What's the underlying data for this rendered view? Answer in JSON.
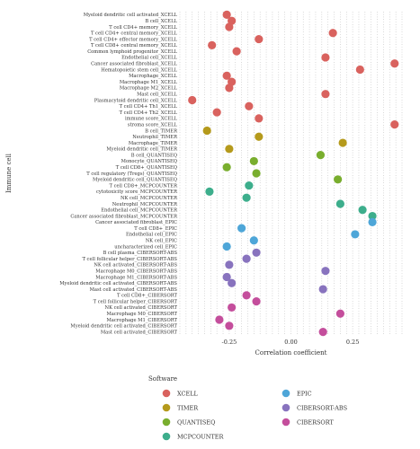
{
  "chart_data": {
    "type": "scatter",
    "xlabel": "Correlation coefficient",
    "ylabel": "Immune cell",
    "xlim": [
      -0.45,
      0.45
    ],
    "x_ticks": [
      -0.25,
      0.0,
      0.25
    ],
    "x_tick_labels": [
      "-0.25",
      "0.00",
      "0.25"
    ],
    "grid": "dotted",
    "legend_title": "Software",
    "legend_position": "bottom",
    "series_colors": {
      "XCELL": "#D9625E",
      "TIMER": "#B59A1C",
      "QUANTISEQ": "#79AE2E",
      "MCPCOUNTER": "#3DAE8C",
      "EPIC": "#4EA6D8",
      "CIBERSORT-ABS": "#8873BE",
      "CIBERSORT": "#C44E9C"
    },
    "legend": [
      "XCELL",
      "TIMER",
      "QUANTISEQ",
      "MCPCOUNTER",
      "EPIC",
      "CIBERSORT-ABS",
      "CIBERSORT"
    ],
    "points": [
      {
        "cell": "Myeloid dendritic cell activated_XCELL",
        "software": "XCELL",
        "x": -0.26
      },
      {
        "cell": "B cell_XCELL",
        "software": "XCELL",
        "x": -0.24
      },
      {
        "cell": "T cell CD4+ memory_XCELL",
        "software": "XCELL",
        "x": -0.25
      },
      {
        "cell": "T cell CD4+ central memory_XCELL",
        "software": "XCELL",
        "x": 0.17
      },
      {
        "cell": "T cell CD4+ effector memory_XCELL",
        "software": "XCELL",
        "x": -0.13
      },
      {
        "cell": "T cell CD8+ central memory_XCELL",
        "software": "XCELL",
        "x": -0.32
      },
      {
        "cell": "Common lymphoid progenitor_XCELL",
        "software": "XCELL",
        "x": -0.22
      },
      {
        "cell": "Endothelial cell_XCELL",
        "software": "XCELL",
        "x": 0.14
      },
      {
        "cell": "Cancer associated fibroblast_XCELL",
        "software": "XCELL",
        "x": 0.42
      },
      {
        "cell": "Hematopoietic stem cell_XCELL",
        "software": "XCELL",
        "x": 0.28
      },
      {
        "cell": "Macrophage_XCELL",
        "software": "XCELL",
        "x": -0.26
      },
      {
        "cell": "Macrophage M1_XCELL",
        "software": "XCELL",
        "x": -0.24
      },
      {
        "cell": "Macrophage M2_XCELL",
        "software": "XCELL",
        "x": -0.25
      },
      {
        "cell": "Mast cell_XCELL",
        "software": "XCELL",
        "x": 0.14
      },
      {
        "cell": "Plasmacytoid dendritic cell_XCELL",
        "software": "XCELL",
        "x": -0.4
      },
      {
        "cell": "T cell CD4+ Th1_XCELL",
        "software": "XCELL",
        "x": -0.17
      },
      {
        "cell": "T cell CD4+ Th2_XCELL",
        "software": "XCELL",
        "x": -0.3
      },
      {
        "cell": "immune score_XCELL",
        "software": "XCELL",
        "x": -0.13
      },
      {
        "cell": "stroma score_XCELL",
        "software": "XCELL",
        "x": 0.42
      },
      {
        "cell": "B cell_TIMER",
        "software": "TIMER",
        "x": -0.34
      },
      {
        "cell": "Neutrophil_TIMER",
        "software": "TIMER",
        "x": -0.13
      },
      {
        "cell": "Macrophage_TIMER",
        "software": "TIMER",
        "x": 0.21
      },
      {
        "cell": "Myeloid dendritic cell_TIMER",
        "software": "TIMER",
        "x": -0.25
      },
      {
        "cell": "B cell_QUANTISEQ",
        "software": "QUANTISEQ",
        "x": 0.12
      },
      {
        "cell": "Monocyte_QUANTISEQ",
        "software": "QUANTISEQ",
        "x": -0.15
      },
      {
        "cell": "T cell CD8+_QUANTISEQ",
        "software": "QUANTISEQ",
        "x": -0.26
      },
      {
        "cell": "T cell regulatory (Tregs)_QUANTISEQ",
        "software": "QUANTISEQ",
        "x": -0.14
      },
      {
        "cell": "Myeloid dendritic cell_QUANTISEQ",
        "software": "QUANTISEQ",
        "x": 0.19
      },
      {
        "cell": "T cell CD8+_MCPCOUNTER",
        "software": "MCPCOUNTER",
        "x": -0.17
      },
      {
        "cell": "cytotoxicity score_MCPCOUNTER",
        "software": "MCPCOUNTER",
        "x": -0.33
      },
      {
        "cell": "NK cell_MCPCOUNTER",
        "software": "MCPCOUNTER",
        "x": -0.18
      },
      {
        "cell": "Neutrophil_MCPCOUNTER",
        "software": "MCPCOUNTER",
        "x": 0.2
      },
      {
        "cell": "Endothelial cell_MCPCOUNTER",
        "software": "MCPCOUNTER",
        "x": 0.29
      },
      {
        "cell": "Cancer associated fibroblast_MCPCOUNTER",
        "software": "MCPCOUNTER",
        "x": 0.33
      },
      {
        "cell": "Cancer associated fibroblast_EPIC",
        "software": "EPIC",
        "x": 0.33
      },
      {
        "cell": "T cell CD8+_EPIC",
        "software": "EPIC",
        "x": -0.2
      },
      {
        "cell": "Endothelial cell_EPIC",
        "software": "EPIC",
        "x": 0.26
      },
      {
        "cell": "NK cell_EPIC",
        "software": "EPIC",
        "x": -0.15
      },
      {
        "cell": "uncharacterized cell_EPIC",
        "software": "EPIC",
        "x": -0.26
      },
      {
        "cell": "B cell plasma_CIBERSORT-ABS",
        "software": "CIBERSORT-ABS",
        "x": -0.14
      },
      {
        "cell": "T cell follicular helper_CIBERSORT-ABS",
        "software": "CIBERSORT-ABS",
        "x": -0.18
      },
      {
        "cell": "NK cell activated_CIBERSORT-ABS",
        "software": "CIBERSORT-ABS",
        "x": -0.25
      },
      {
        "cell": "Macrophage M0_CIBERSORT-ABS",
        "software": "CIBERSORT-ABS",
        "x": 0.14
      },
      {
        "cell": "Macrophage M1_CIBERSORT-ABS",
        "software": "CIBERSORT-ABS",
        "x": -0.26
      },
      {
        "cell": "Myeloid dendritic cell activated_CIBERSORT-ABS",
        "software": "CIBERSORT-ABS",
        "x": -0.24
      },
      {
        "cell": "Mast cell activated_CIBERSORT-ABS",
        "software": "CIBERSORT-ABS",
        "x": 0.13
      },
      {
        "cell": "T cell CD8+_CIBERSORT",
        "software": "CIBERSORT",
        "x": -0.18
      },
      {
        "cell": "T cell follicular helper_CIBERSORT",
        "software": "CIBERSORT",
        "x": -0.14
      },
      {
        "cell": "NK cell activated_CIBERSORT",
        "software": "CIBERSORT",
        "x": -0.24
      },
      {
        "cell": "Macrophage M0_CIBERSORT",
        "software": "CIBERSORT",
        "x": 0.2
      },
      {
        "cell": "Macrophage M1_CIBERSORT",
        "software": "CIBERSORT",
        "x": -0.29
      },
      {
        "cell": "Myeloid dendritic cell activated_CIBERSORT",
        "software": "CIBERSORT",
        "x": -0.25
      },
      {
        "cell": "Mast cell activated_CIBERSORT",
        "software": "CIBERSORT",
        "x": 0.13
      }
    ]
  }
}
